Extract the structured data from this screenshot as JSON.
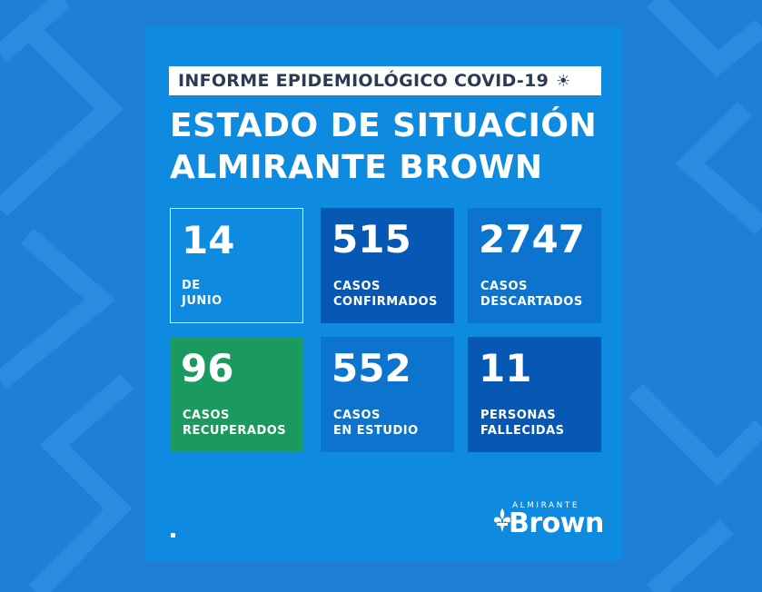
{
  "header": {
    "banner": "INFORME EPIDEMIOLÓGICO COVID-19",
    "title_line1": "ESTADO DE SITUACIÓN",
    "title_line2": "ALMIRANTE BROWN"
  },
  "cards": {
    "date": {
      "value": "14",
      "line1": "DE",
      "line2": "JUNIO"
    },
    "confirmed": {
      "value": "515",
      "line1": "CASOS",
      "line2": "CONFIRMADOS"
    },
    "discarded": {
      "value": "2747",
      "line1": "CASOS",
      "line2": "DESCARTADOS"
    },
    "recovered": {
      "value": "96",
      "line1": "CASOS",
      "line2": "RECUPERADOS"
    },
    "study": {
      "value": "552",
      "line1": "CASOS",
      "line2": "EN ESTUDIO"
    },
    "deceased": {
      "value": "11",
      "line1": "PERSONAS",
      "line2": "FALLECIDAS"
    }
  },
  "logo": {
    "small": "ALMIRANTE",
    "big": "Brown"
  },
  "colors": {
    "background": "#1f7fd6",
    "panel": "#0e8ae0",
    "dark_blue": "#0658b4",
    "mid_blue": "#0c74cf",
    "green": "#1b9a5f"
  },
  "icons": {
    "banner": "sun-icon",
    "logo": "fleur-de-lis-icon"
  }
}
